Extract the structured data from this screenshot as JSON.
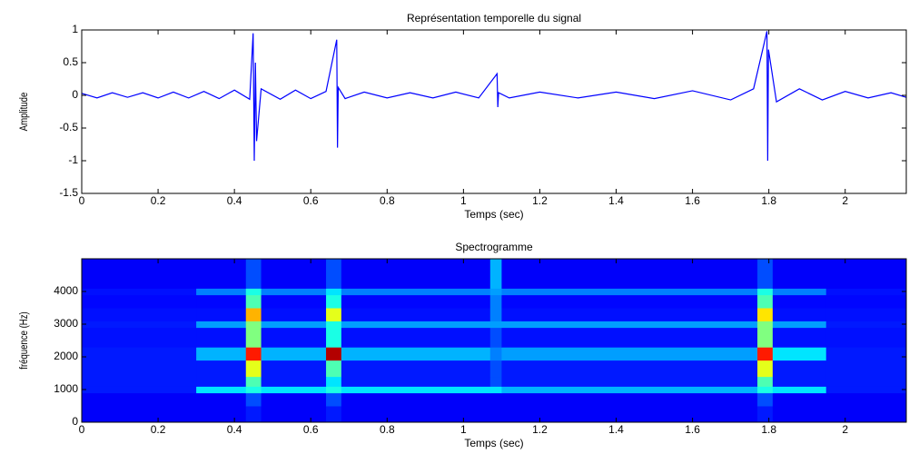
{
  "chart_data": [
    {
      "type": "line",
      "title": "Représentation temporelle du signal",
      "xlabel": "Temps (sec)",
      "ylabel": "Amplitude",
      "x": [
        0,
        0.04,
        0.08,
        0.12,
        0.16,
        0.2,
        0.24,
        0.28,
        0.32,
        0.36,
        0.4,
        0.44,
        0.449,
        0.452,
        0.455,
        0.458,
        0.47,
        0.52,
        0.56,
        0.6,
        0.64,
        0.668,
        0.67,
        0.672,
        0.69,
        0.74,
        0.8,
        0.86,
        0.92,
        0.98,
        1.04,
        1.088,
        1.09,
        1.092,
        1.12,
        1.2,
        1.3,
        1.4,
        1.5,
        1.6,
        1.7,
        1.76,
        1.795,
        1.797,
        1.799,
        1.82,
        1.88,
        1.94,
        2.0,
        2.06,
        2.12,
        2.16
      ],
      "series": [
        {
          "color": "#0000ff",
          "values": [
            0.03,
            -0.04,
            0.04,
            -0.03,
            0.04,
            -0.04,
            0.05,
            -0.04,
            0.06,
            -0.05,
            0.08,
            -0.06,
            0.95,
            -1.0,
            0.5,
            -0.7,
            0.1,
            -0.06,
            0.08,
            -0.05,
            0.06,
            0.85,
            -0.8,
            0.12,
            -0.05,
            0.05,
            -0.04,
            0.04,
            -0.04,
            0.05,
            -0.04,
            0.33,
            -0.18,
            0.04,
            -0.04,
            0.05,
            -0.04,
            0.05,
            -0.05,
            0.07,
            -0.07,
            0.1,
            0.98,
            -1.0,
            0.7,
            -0.1,
            0.1,
            -0.07,
            0.06,
            -0.04,
            0.04,
            -0.03
          ]
        }
      ],
      "xlim": [
        0,
        2.16
      ],
      "ylim": [
        -1.5,
        1
      ],
      "xticks": [
        0,
        0.2,
        0.4,
        0.6,
        0.8,
        1,
        1.2,
        1.4,
        1.6,
        1.8,
        2
      ],
      "yticks": [
        -1.5,
        -1,
        -0.5,
        0,
        0.5,
        1
      ]
    },
    {
      "type": "heatmap",
      "title": "Spectrogramme",
      "xlabel": "Temps (sec)",
      "ylabel": "fréquence (Hz)",
      "colormap": "jet",
      "x_edges": [
        0,
        0.3,
        0.43,
        0.47,
        0.64,
        0.68,
        1.07,
        1.1,
        1.77,
        1.81,
        1.95,
        2.16
      ],
      "y_edges": [
        0,
        500,
        900,
        1100,
        1400,
        1900,
        2300,
        2900,
        3100,
        3500,
        3900,
        4100,
        5000
      ],
      "z": [
        [
          0.12,
          0.12,
          0.15,
          0.12,
          0.15,
          0.12,
          0.12,
          0.12,
          0.15,
          0.12,
          0.12
        ],
        [
          0.12,
          0.12,
          0.2,
          0.12,
          0.2,
          0.12,
          0.12,
          0.12,
          0.2,
          0.12,
          0.12
        ],
        [
          0.15,
          0.35,
          0.4,
          0.35,
          0.4,
          0.35,
          0.35,
          0.3,
          0.4,
          0.35,
          0.15
        ],
        [
          0.15,
          0.15,
          0.45,
          0.15,
          0.35,
          0.15,
          0.2,
          0.15,
          0.45,
          0.15,
          0.15
        ],
        [
          0.15,
          0.15,
          0.6,
          0.15,
          0.45,
          0.15,
          0.2,
          0.15,
          0.6,
          0.15,
          0.15
        ],
        [
          0.15,
          0.3,
          0.85,
          0.3,
          0.95,
          0.3,
          0.25,
          0.28,
          0.85,
          0.35,
          0.15
        ],
        [
          0.14,
          0.14,
          0.5,
          0.14,
          0.4,
          0.14,
          0.2,
          0.14,
          0.5,
          0.14,
          0.14
        ],
        [
          0.15,
          0.28,
          0.5,
          0.28,
          0.4,
          0.28,
          0.28,
          0.28,
          0.5,
          0.28,
          0.15
        ],
        [
          0.14,
          0.14,
          0.7,
          0.14,
          0.6,
          0.14,
          0.25,
          0.14,
          0.65,
          0.14,
          0.14
        ],
        [
          0.13,
          0.13,
          0.45,
          0.13,
          0.4,
          0.13,
          0.25,
          0.13,
          0.45,
          0.13,
          0.13
        ],
        [
          0.14,
          0.25,
          0.4,
          0.25,
          0.35,
          0.25,
          0.28,
          0.25,
          0.4,
          0.25,
          0.14
        ],
        [
          0.12,
          0.12,
          0.2,
          0.12,
          0.2,
          0.12,
          0.3,
          0.12,
          0.2,
          0.12,
          0.12
        ]
      ],
      "zlim": [
        0,
        1
      ],
      "xlim": [
        0,
        2.16
      ],
      "ylim": [
        0,
        5000
      ],
      "xticks": [
        0,
        0.2,
        0.4,
        0.6,
        0.8,
        1,
        1.2,
        1.4,
        1.6,
        1.8,
        2
      ],
      "yticks": [
        0,
        1000,
        2000,
        3000,
        4000
      ]
    }
  ]
}
